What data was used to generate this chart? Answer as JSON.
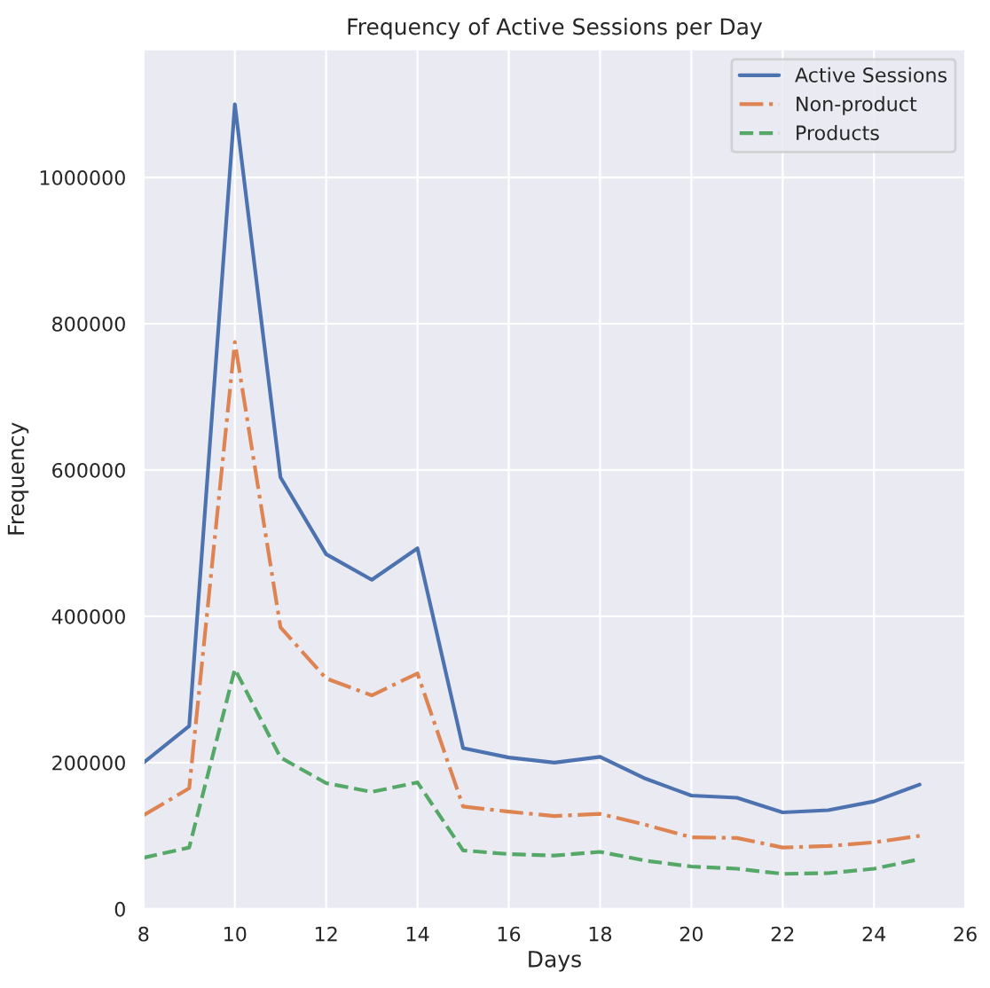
{
  "chart_data": {
    "type": "line",
    "title": "Frequency of Active Sessions per Day",
    "xlabel": "Days",
    "ylabel": "Frequency",
    "x": [
      8,
      9,
      10,
      11,
      12,
      13,
      14,
      15,
      16,
      17,
      18,
      19,
      20,
      21,
      22,
      23,
      24,
      25
    ],
    "series": [
      {
        "name": "Active Sessions",
        "color": "#4c72b0",
        "line_style": "solid",
        "values": [
          200000,
          250000,
          1100000,
          590000,
          485000,
          450000,
          493000,
          220000,
          207000,
          200000,
          208000,
          178000,
          155000,
          152000,
          132000,
          135000,
          147000,
          170000
        ]
      },
      {
        "name": "Non-product",
        "color": "#dd8452",
        "line_style": "dashdot",
        "values": [
          128000,
          165000,
          775000,
          385000,
          315000,
          292000,
          322000,
          140000,
          133000,
          127000,
          130000,
          115000,
          98000,
          97000,
          84000,
          86000,
          91000,
          100000
        ]
      },
      {
        "name": "Products",
        "color": "#55a868",
        "line_style": "dashed",
        "values": [
          70000,
          84000,
          328000,
          207000,
          172000,
          160000,
          173000,
          80000,
          75000,
          73000,
          78000,
          66000,
          58000,
          55000,
          48000,
          49000,
          55000,
          68000
        ]
      }
    ],
    "xlim": [
      8,
      26
    ],
    "xticks": [
      8,
      10,
      12,
      14,
      16,
      18,
      20,
      22,
      24,
      26
    ],
    "ylim": [
      0,
      1175000
    ],
    "yticks": [
      0,
      200000,
      400000,
      600000,
      800000,
      1000000
    ],
    "grid": true,
    "legend": "top right"
  }
}
